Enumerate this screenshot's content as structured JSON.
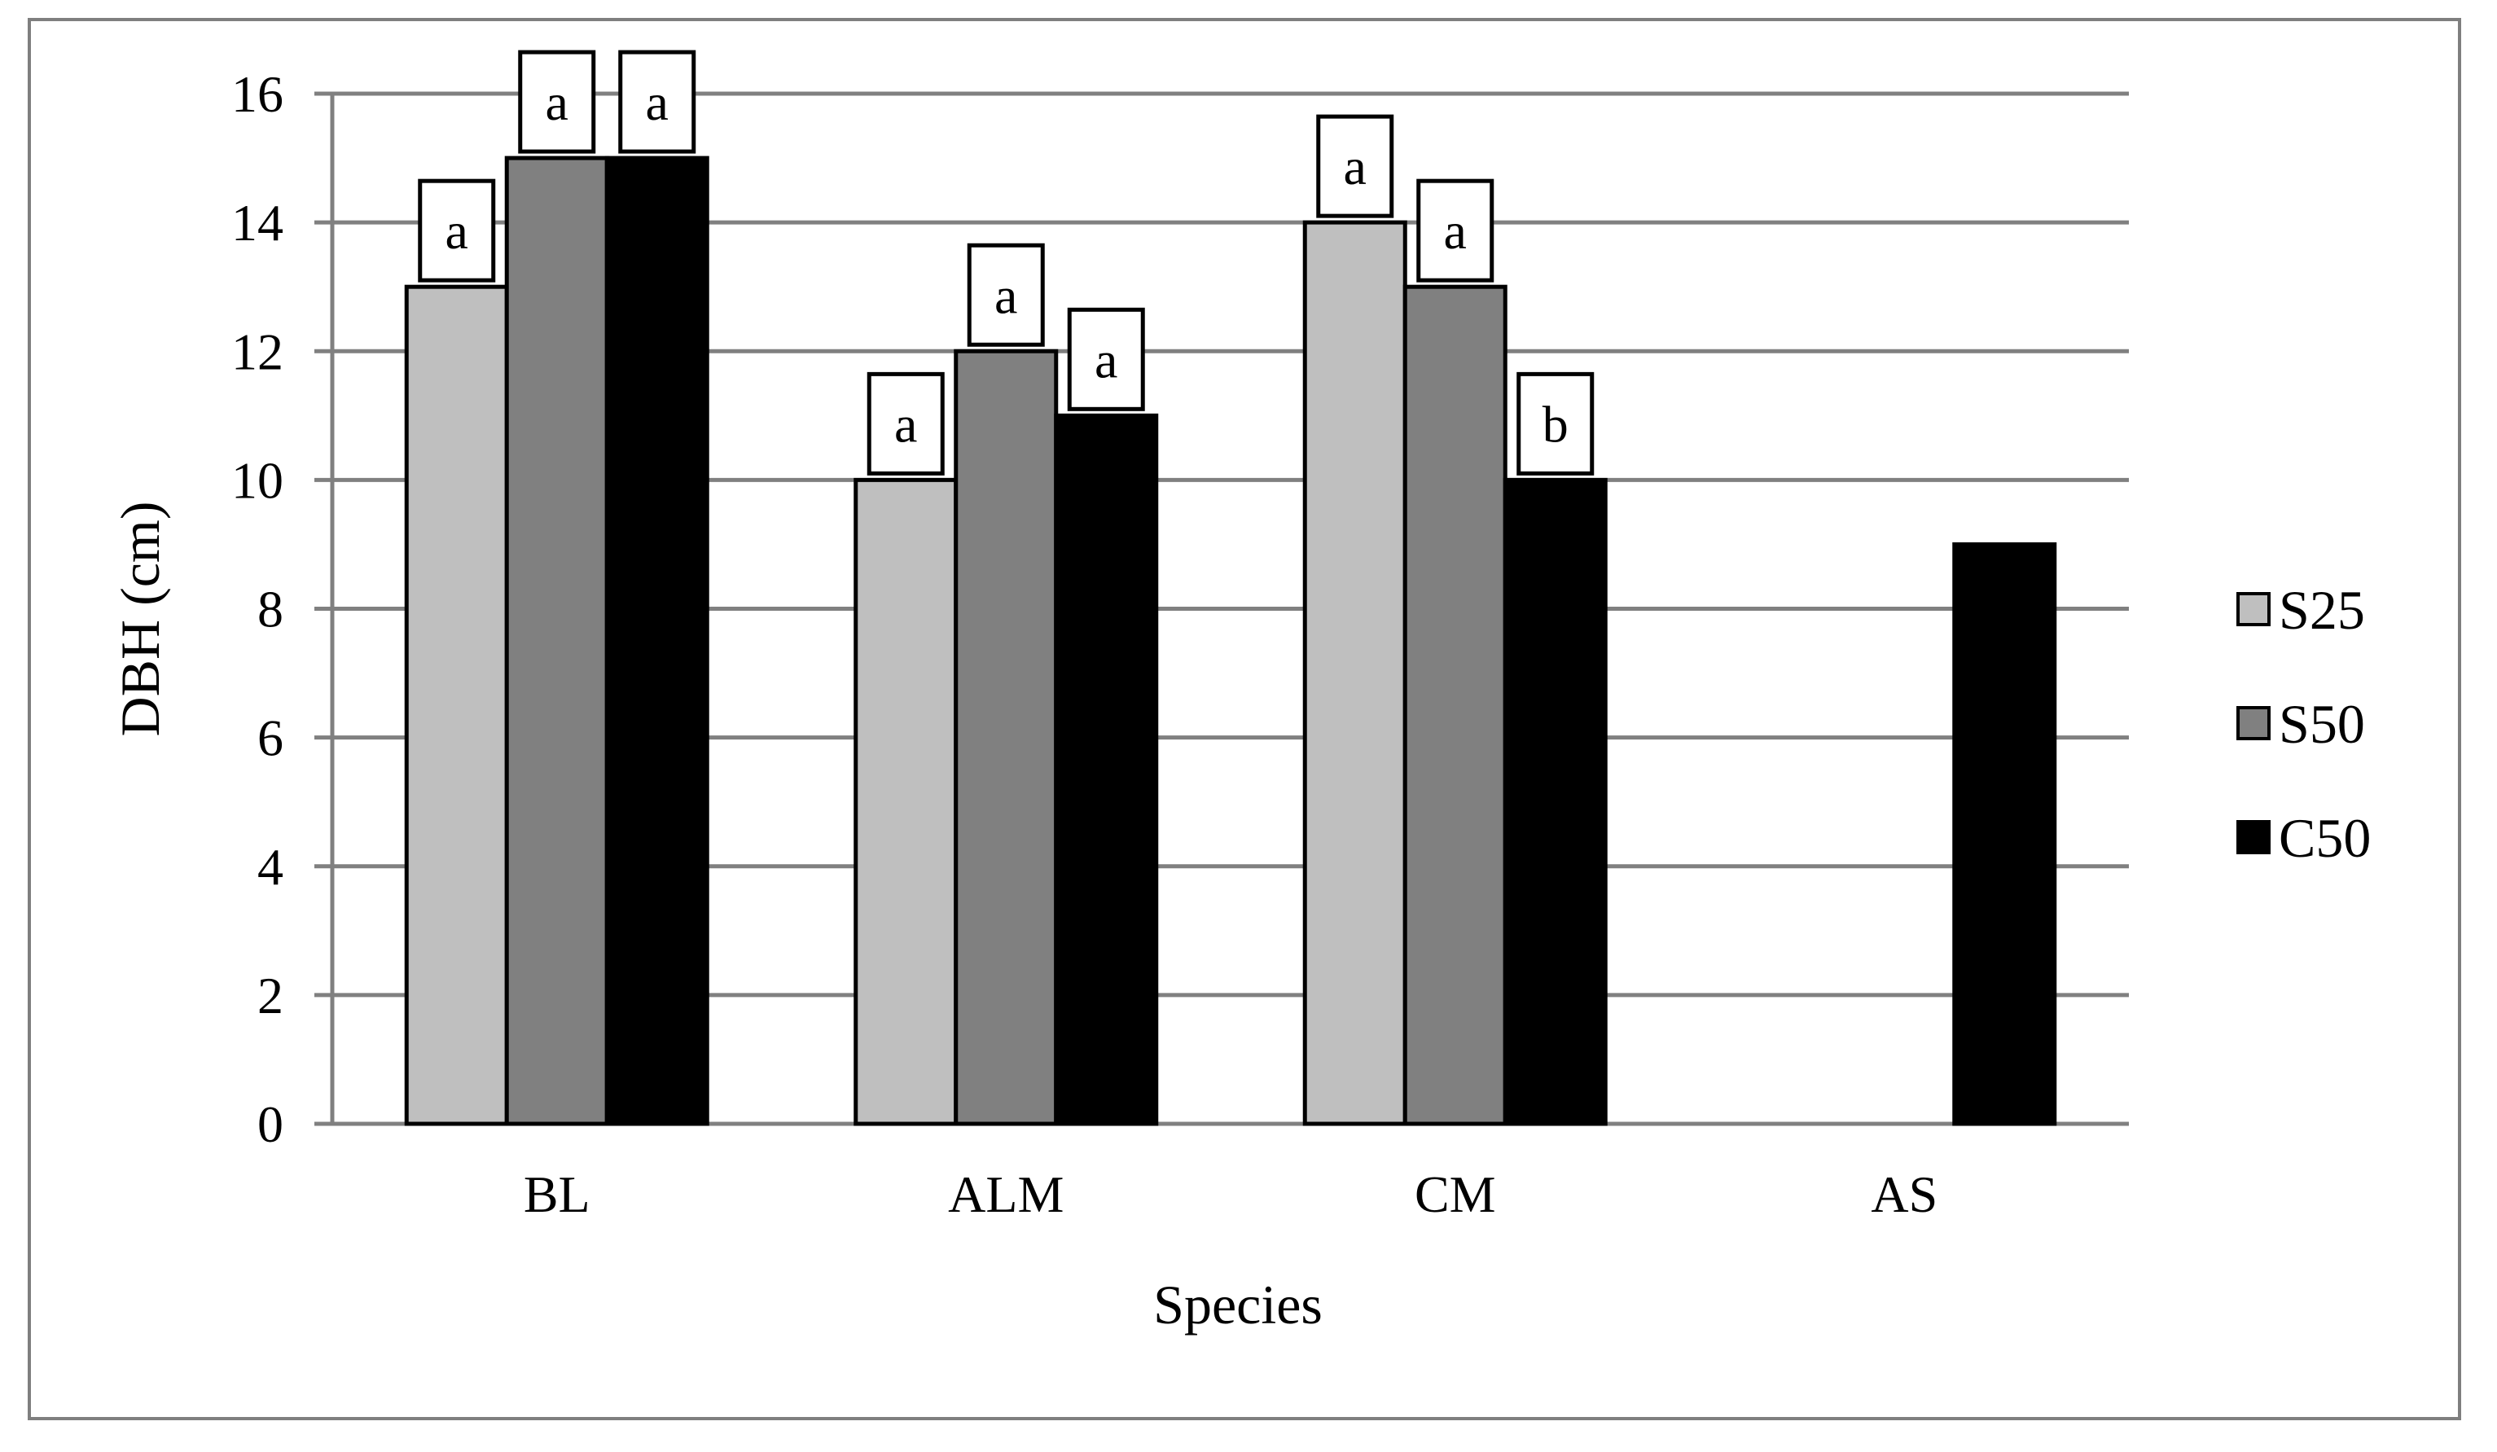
{
  "chart_data": {
    "type": "bar",
    "title": "",
    "xlabel": "Species",
    "ylabel": "DBH (cm)",
    "ylim": [
      0,
      16
    ],
    "yticks": [
      0,
      2,
      4,
      6,
      8,
      10,
      12,
      14,
      16
    ],
    "grid": true,
    "legend_position": "right",
    "categories": [
      "BL",
      "ALM",
      "CM",
      "AS"
    ],
    "series": [
      {
        "name": "S25",
        "color": "#bfbfbf",
        "values": [
          13,
          10,
          14,
          null
        ],
        "labels": [
          "a",
          "a",
          "a",
          null
        ]
      },
      {
        "name": "S50",
        "color": "#808080",
        "values": [
          15,
          12,
          13,
          null
        ],
        "labels": [
          "a",
          "a",
          "a",
          null
        ]
      },
      {
        "name": "C50",
        "color": "#000000",
        "values": [
          15,
          11,
          10,
          9
        ],
        "labels": [
          "a",
          "a",
          "b",
          null
        ]
      }
    ]
  }
}
